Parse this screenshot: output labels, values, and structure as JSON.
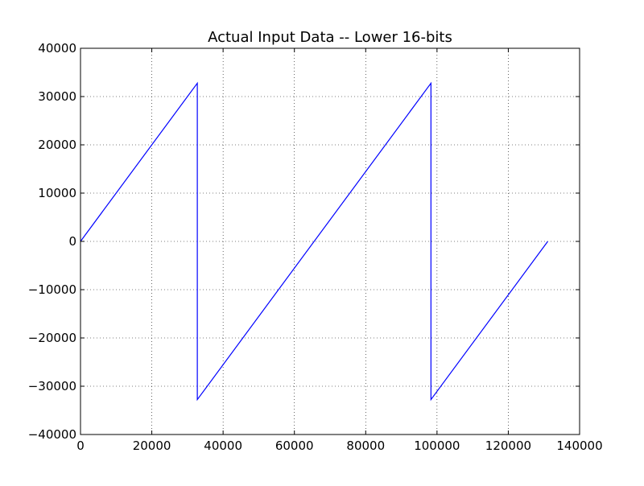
{
  "chart_data": {
    "type": "line",
    "title": "Actual Input Data -- Lower 16-bits",
    "xlabel": "",
    "ylabel": "",
    "xlim": [
      0,
      140000
    ],
    "ylim": [
      -40000,
      40000
    ],
    "xticks": [
      0,
      20000,
      40000,
      60000,
      80000,
      100000,
      120000,
      140000
    ],
    "yticks": [
      -40000,
      -30000,
      -20000,
      -10000,
      0,
      10000,
      20000,
      30000,
      40000
    ],
    "xtick_labels": [
      "0",
      "20000",
      "40000",
      "60000",
      "80000",
      "100000",
      "120000",
      "140000"
    ],
    "ytick_labels": [
      "−40000",
      "−30000",
      "−20000",
      "−10000",
      "0",
      "10000",
      "20000",
      "30000",
      "40000"
    ],
    "grid": true,
    "series": [
      {
        "color": "#0000ff",
        "x": [
          0,
          32767,
          32768,
          98303,
          98304,
          131071
        ],
        "y": [
          0,
          32767,
          -32768,
          32767,
          -32768,
          -1
        ]
      }
    ]
  }
}
